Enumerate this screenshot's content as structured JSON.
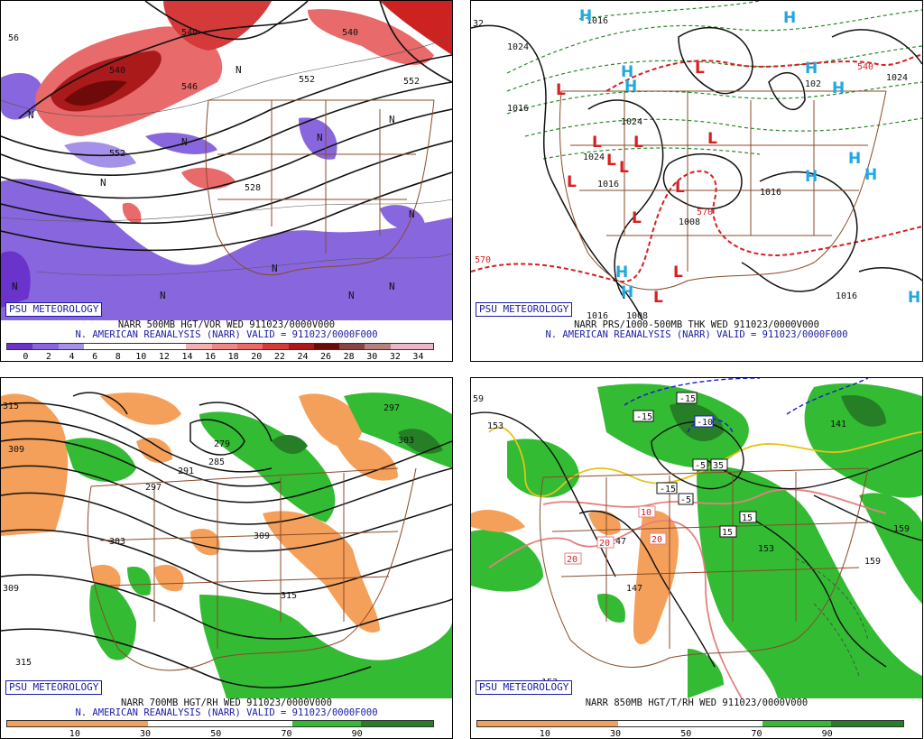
{
  "brand": "PSU METEOROLOGY",
  "colors": {
    "high_marker": "#22a7e0",
    "low_marker": "#d81f1f",
    "state_borders": "#8a4a2a",
    "vort_purple": "#8866dd",
    "vort_red": "#cc2222",
    "rh_green": "#33bb33",
    "rh_orange": "#f5a05a",
    "credit_blue": "#1a1aa8"
  },
  "panels": {
    "p1": {
      "caption_line1": "NARR 500MB HGT/VOR WED 911023/0000V000",
      "caption_line2": "N. AMERICAN REANALYSIS (NARR) VALID = 911023/0000F000",
      "scale_ticks": [
        "0",
        "2",
        "4",
        "6",
        "8",
        "10",
        "12",
        "14",
        "16",
        "18",
        "20",
        "22",
        "24",
        "26",
        "28",
        "30",
        "32",
        "34"
      ],
      "contour_labels": [
        "56",
        "540",
        "546",
        "540",
        "552",
        "552",
        "528",
        "540",
        "552"
      ],
      "n_markers": [
        "N",
        "N",
        "N",
        "N",
        "N",
        "N",
        "N",
        "N",
        "N",
        "N",
        "N",
        "N"
      ]
    },
    "p2": {
      "caption_line1": "NARR PRS/1000-500MB THK WED 911023/0000V000",
      "caption_line2": "N. AMERICAN REANALYSIS (NARR) VALID = 911023/0000F000",
      "contour_labels": [
        "32",
        "1024",
        "1016",
        "1016",
        "1024",
        "1024",
        "1016",
        "1008",
        "1008",
        "1016",
        "1016",
        "540",
        "570",
        "570",
        "1024",
        "102",
        "1016"
      ],
      "highs": [
        "H",
        "H",
        "H",
        "H",
        "H",
        "H",
        "H",
        "H",
        "H",
        "H",
        "H",
        "H"
      ],
      "lows": [
        "L",
        "L",
        "L",
        "L",
        "L",
        "L",
        "L",
        "L",
        "L",
        "L",
        "L",
        "L"
      ]
    },
    "p3": {
      "caption_line1": "NARR 700MB HGT/RH WED 911023/0000V000",
      "caption_line2": "N. AMERICAN REANALYSIS (NARR) VALID = 911023/0000F000",
      "scale_ticks": [
        "10",
        "30",
        "50",
        "70",
        "90"
      ],
      "contour_labels": [
        "315",
        "309",
        "291",
        "285",
        "279",
        "297",
        "303",
        "303",
        "309",
        "315",
        "297",
        "309",
        "315"
      ]
    },
    "p4": {
      "caption_line1": "NARR 850MB HGT/T/RH WED 911023/0000V000",
      "scale_ticks": [
        "10",
        "30",
        "50",
        "70",
        "90"
      ],
      "contour_labels": [
        "59",
        "153",
        "147",
        "147",
        "153",
        "159",
        "159",
        "141",
        "153"
      ],
      "temp_boxes": [
        "-15",
        "-10",
        "-15",
        "-5",
        "-5",
        "10",
        "15",
        "15",
        "20",
        "20",
        "20",
        "-15",
        "35"
      ]
    }
  }
}
